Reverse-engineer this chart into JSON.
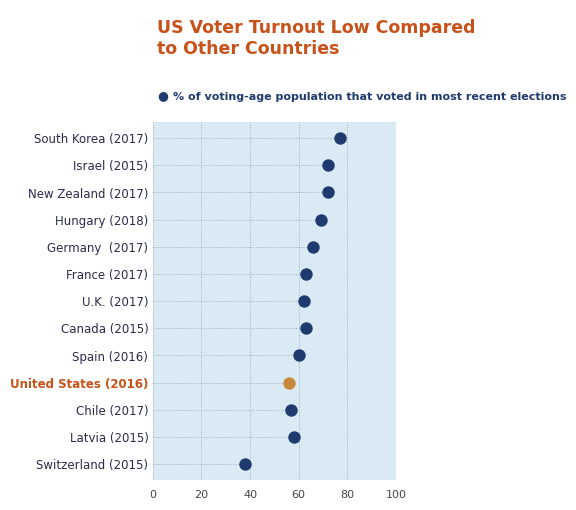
{
  "title": "US Voter Turnout Low Compared\nto Other Countries",
  "subtitle": "% of voting-age population that voted in most recent elections",
  "title_color": "#c8521a",
  "subtitle_dot_color": "#1e3a6e",
  "subtitle_text_color": "#1e3a6e",
  "background_color": "#daeaf4",
  "header_background": "#ffffff",
  "categories": [
    "South Korea (2017)",
    "Israel (2015)",
    "New Zealand (2017)",
    "Hungary (2018)",
    "Germany  (2017)",
    "France (2017)",
    "U.K. (2017)",
    "Canada (2015)",
    "Spain (2016)",
    "United States (2016)",
    "Chile (2017)",
    "Latvia (2015)",
    "Switzerland (2015)"
  ],
  "values": [
    77,
    72,
    72,
    69,
    66,
    63,
    62,
    63,
    60,
    56,
    57,
    58,
    38
  ],
  "dot_colors": [
    "#1e3a6e",
    "#1e3a6e",
    "#1e3a6e",
    "#1e3a6e",
    "#1e3a6e",
    "#1e3a6e",
    "#1e3a6e",
    "#1e3a6e",
    "#1e3a6e",
    "#c8883a",
    "#1e3a6e",
    "#1e3a6e",
    "#1e3a6e"
  ],
  "label_colors": [
    "#2b2b4b",
    "#2b2b4b",
    "#2b2b4b",
    "#2b2b4b",
    "#2b2b4b",
    "#2b2b4b",
    "#2b2b4b",
    "#2b2b4b",
    "#2b2b4b",
    "#c8521a",
    "#2b2b4b",
    "#2b2b4b",
    "#2b2b4b"
  ],
  "us_index": 9,
  "xlim": [
    0,
    100
  ],
  "xticks": [
    0,
    20,
    40,
    60,
    80,
    100
  ],
  "dot_size": 80,
  "title_fontsize": 12.5,
  "subtitle_fontsize": 8,
  "tick_fontsize": 8,
  "label_fontsize": 8.5
}
